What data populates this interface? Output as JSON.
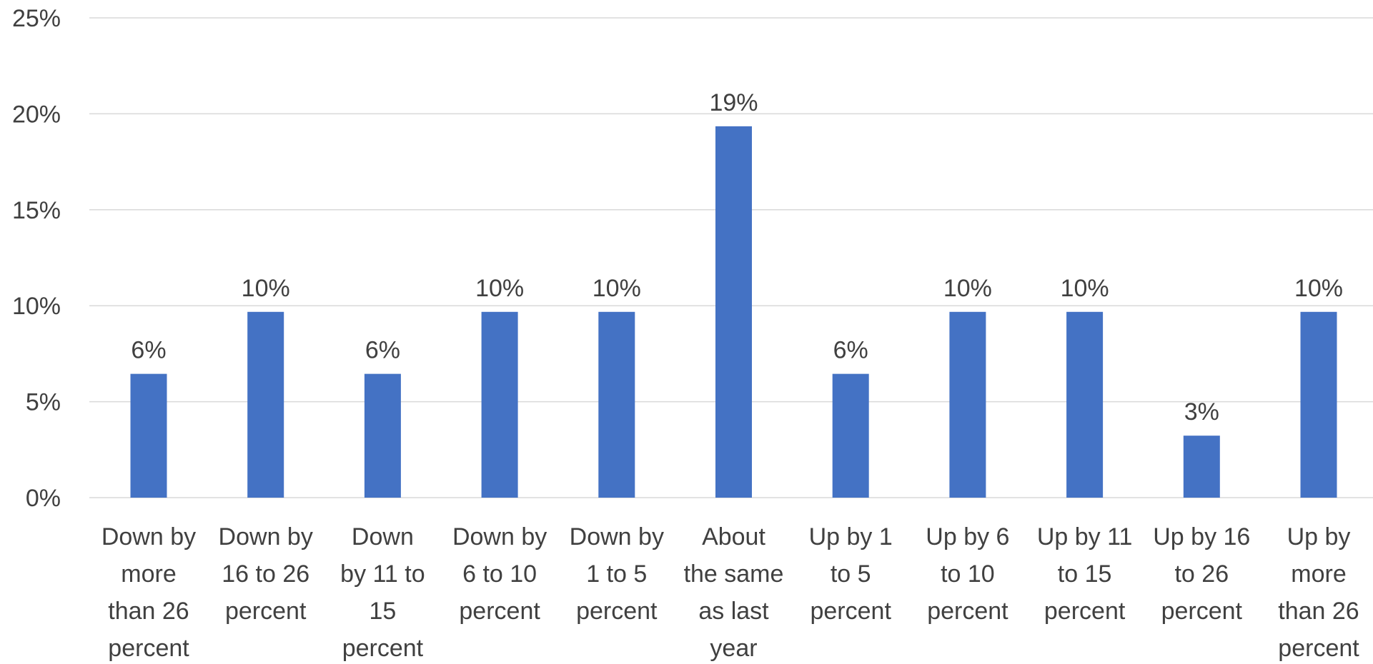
{
  "chart_data": {
    "type": "bar",
    "categories": [
      [
        "Down by",
        "more",
        "than 26",
        "percent"
      ],
      [
        "Down by",
        "16 to 26",
        "percent"
      ],
      [
        "Down",
        "by 11 to",
        "15",
        "percent"
      ],
      [
        "Down by",
        "6 to 10",
        "percent"
      ],
      [
        "Down by",
        "1 to 5",
        "percent"
      ],
      [
        "About",
        "the same",
        "as last",
        "year"
      ],
      [
        "Up by 1",
        "to 5",
        "percent"
      ],
      [
        "Up by 6",
        "to 10",
        "percent"
      ],
      [
        "Up by 11",
        "to 15",
        "percent"
      ],
      [
        "Up by 16",
        "to 26",
        "percent"
      ],
      [
        "Up by",
        "more",
        "than 26",
        "percent"
      ]
    ],
    "values": [
      6.45,
      9.68,
      6.45,
      9.68,
      9.68,
      19.35,
      6.45,
      9.68,
      9.68,
      3.23,
      9.68
    ],
    "data_labels": [
      "6%",
      "10%",
      "6%",
      "10%",
      "10%",
      "19%",
      "6%",
      "10%",
      "10%",
      "3%",
      "10%"
    ],
    "ylim": [
      0,
      25
    ],
    "yticks": [
      0,
      5,
      10,
      15,
      20,
      25
    ],
    "ytick_labels": [
      "0%",
      "5%",
      "10%",
      "15%",
      "20%",
      "25%"
    ],
    "grid": true,
    "legend": "none",
    "bar_color": "#4472c4"
  }
}
